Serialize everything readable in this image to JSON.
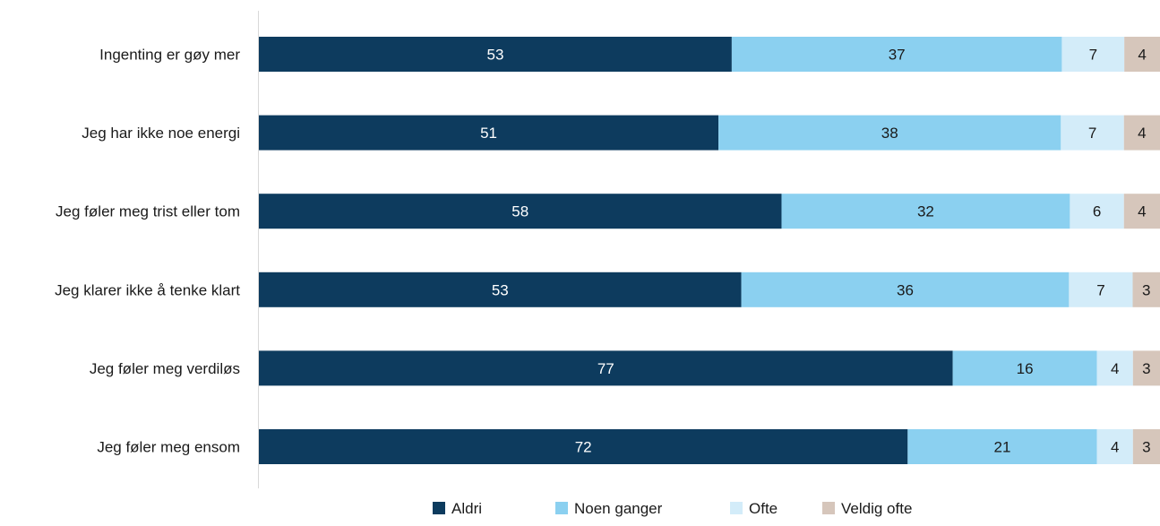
{
  "chart_data": {
    "type": "bar",
    "orientation": "horizontal",
    "stacked": true,
    "title": "",
    "xlabel": "",
    "ylabel": "",
    "categories": [
      "Ingenting er gøy mer",
      "Jeg har ikke noe energi",
      "Jeg føler meg trist eller tom",
      "Jeg klarer ikke å tenke klart",
      "Jeg føler meg verdiløs",
      "Jeg føler meg ensom"
    ],
    "series": [
      {
        "name": "Aldri",
        "color": "#0d3b5e",
        "label_color": "#ffffff",
        "values": [
          53,
          51,
          58,
          53,
          77,
          72
        ]
      },
      {
        "name": "Noen ganger",
        "color": "#8bd0f0",
        "label_color": "#1a1a1a",
        "values": [
          37,
          38,
          32,
          36,
          16,
          21
        ]
      },
      {
        "name": "Ofte",
        "color": "#d3ecf9",
        "label_color": "#1a1a1a",
        "values": [
          7,
          7,
          6,
          7,
          4,
          4
        ]
      },
      {
        "name": "Veldig ofte",
        "color": "#d6c6bb",
        "label_color": "#1a1a1a",
        "values": [
          4,
          4,
          4,
          3,
          3,
          3
        ]
      }
    ],
    "legend_position": "bottom",
    "grid": false,
    "axis_line_color": "#d9d9d9"
  }
}
